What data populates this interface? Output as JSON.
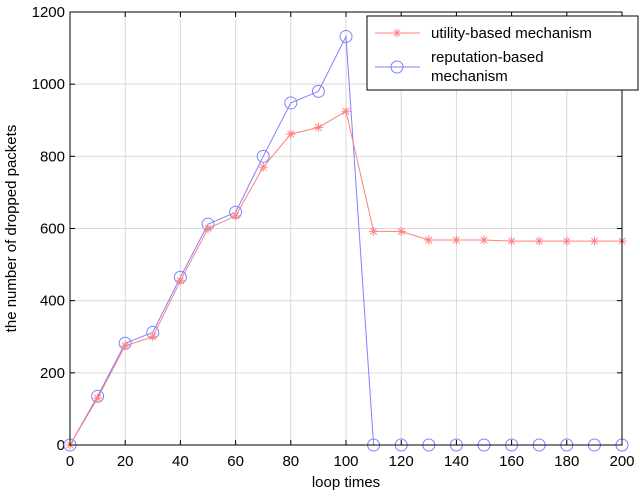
{
  "chart_data": {
    "type": "line",
    "xlabel": "loop times",
    "ylabel": "the number of dropped packets",
    "xlim": [
      0,
      200
    ],
    "ylim": [
      0,
      1200
    ],
    "xticks": [
      0,
      20,
      40,
      60,
      80,
      100,
      120,
      140,
      160,
      180,
      200
    ],
    "yticks": [
      0,
      200,
      400,
      600,
      800,
      1000,
      1200
    ],
    "grid": true,
    "legend_position": "top-right",
    "x": [
      0,
      10,
      20,
      30,
      40,
      50,
      60,
      70,
      80,
      90,
      100,
      110,
      120,
      130,
      140,
      150,
      160,
      170,
      180,
      190,
      200
    ],
    "series": [
      {
        "name": "utility-based mechanism",
        "legend_lines": [
          "utility-based mechanism"
        ],
        "color": "#ff8080",
        "marker": "star",
        "values": [
          0,
          130,
          275,
          300,
          455,
          600,
          635,
          770,
          862,
          880,
          925,
          592,
          592,
          568,
          568,
          568,
          565,
          565,
          565,
          565,
          565
        ]
      },
      {
        "name": "reputation-based mechanism",
        "legend_lines": [
          "reputation-based",
          "mechanism"
        ],
        "color": "#8080ff",
        "marker": "circle",
        "values": [
          0,
          135,
          282,
          312,
          465,
          612,
          645,
          800,
          948,
          980,
          1132,
          0,
          0,
          0,
          0,
          0,
          0,
          0,
          0,
          0,
          0
        ]
      }
    ]
  }
}
